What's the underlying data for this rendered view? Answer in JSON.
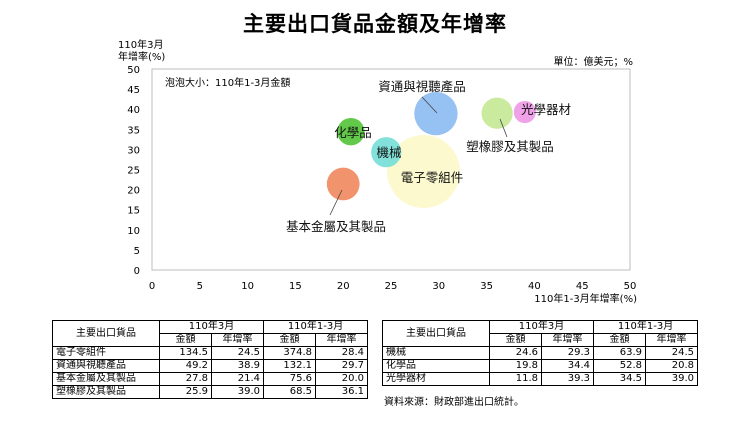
{
  "title": "主要出口貨品金額及年增率",
  "unit": "單位：億美元；%",
  "bubble_note": "泡泡大小：110年1-3月金額",
  "chart_data": {
    "type": "scatter",
    "title": "主要出口貨品金額及年增率",
    "ylabel_lines": [
      "110年3月",
      "年增率(%)"
    ],
    "xlabel": "110年1-3月年增率(%)",
    "xlim": [
      0,
      50
    ],
    "ylim": [
      0,
      50
    ],
    "xticks": [
      "0",
      "5",
      "10",
      "15",
      "20",
      "25",
      "30",
      "35",
      "40",
      "45",
      "50"
    ],
    "yticks": [
      "0",
      "5",
      "10",
      "15",
      "20",
      "25",
      "30",
      "35",
      "40",
      "45",
      "50"
    ],
    "grid": false,
    "bubble_size_by": "110年1-3月金額",
    "points": [
      {
        "label": "電子零組件",
        "x": 28.4,
        "y": 24.5,
        "size": 374.8,
        "color": "#fbf9c9"
      },
      {
        "label": "資通與視聽產品",
        "x": 29.7,
        "y": 38.9,
        "size": 132.1,
        "color": "#8dbcf2"
      },
      {
        "label": "基本金屬及其製品",
        "x": 20.0,
        "y": 21.4,
        "size": 75.6,
        "color": "#f08a5f"
      },
      {
        "label": "塑橡膠及其製品",
        "x": 36.1,
        "y": 39.0,
        "size": 68.5,
        "color": "#c6e895"
      },
      {
        "label": "機械",
        "x": 24.5,
        "y": 29.3,
        "size": 63.9,
        "color": "#77ded8"
      },
      {
        "label": "化學品",
        "x": 20.8,
        "y": 34.4,
        "size": 52.8,
        "color": "#56c43c"
      },
      {
        "label": "光學器材",
        "x": 39.0,
        "y": 39.3,
        "size": 34.5,
        "color": "#ef9ae6"
      }
    ]
  },
  "tables": [
    {
      "head_item": "主要出口貨品",
      "group1": "110年3月",
      "group2": "110年1-3月",
      "col_amount": "金額",
      "col_growth": "年增率",
      "rows": [
        {
          "name": "電子零組件",
          "m_amt": "134.5",
          "m_gr": "24.5",
          "q_amt": "374.8",
          "q_gr": "28.4"
        },
        {
          "name": "資通與視聽產品",
          "m_amt": "49.2",
          "m_gr": "38.9",
          "q_amt": "132.1",
          "q_gr": "29.7"
        },
        {
          "name": "基本金屬及其製品",
          "m_amt": "27.8",
          "m_gr": "21.4",
          "q_amt": "75.6",
          "q_gr": "20.0"
        },
        {
          "name": "塑橡膠及其製品",
          "m_amt": "25.9",
          "m_gr": "39.0",
          "q_amt": "68.5",
          "q_gr": "36.1"
        }
      ]
    },
    {
      "head_item": "主要出口貨品",
      "group1": "110年3月",
      "group2": "110年1-3月",
      "col_amount": "金額",
      "col_growth": "年增率",
      "rows": [
        {
          "name": "機械",
          "m_amt": "24.6",
          "m_gr": "29.3",
          "q_amt": "63.9",
          "q_gr": "24.5"
        },
        {
          "name": "化學品",
          "m_amt": "19.8",
          "m_gr": "34.4",
          "q_amt": "52.8",
          "q_gr": "20.8"
        },
        {
          "name": "光學器材",
          "m_amt": "11.8",
          "m_gr": "39.3",
          "q_amt": "34.5",
          "q_gr": "39.0"
        }
      ]
    }
  ],
  "source": "資料來源：財政部進出口統計。"
}
